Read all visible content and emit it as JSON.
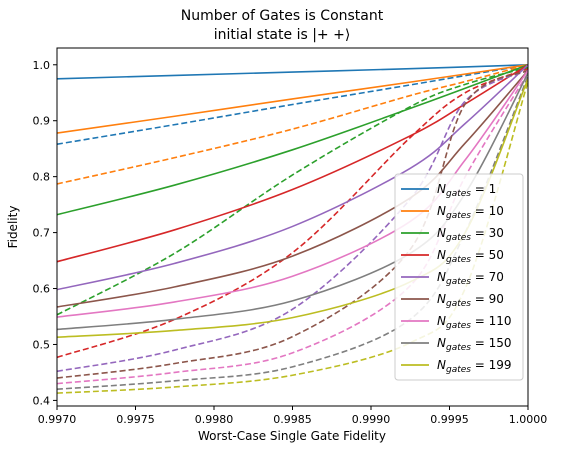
{
  "chart_data": {
    "type": "line",
    "title": "Number of Gates is Constant",
    "subtitle": "initial state is |+ +⟩",
    "xlabel": "Worst-Case Single Gate Fidelity",
    "ylabel": "Fidelity",
    "xlim": [
      0.997,
      1.0
    ],
    "ylim": [
      0.39,
      1.03
    ],
    "xticks": [
      0.997,
      0.9975,
      0.998,
      0.9985,
      0.999,
      0.9995,
      1.0
    ],
    "xtick_labels": [
      "0.9970",
      "0.9975",
      "0.9980",
      "0.9985",
      "0.9990",
      "0.9995",
      "1.0000"
    ],
    "yticks": [
      0.4,
      0.5,
      0.6,
      0.7,
      0.8,
      0.9,
      1.0
    ],
    "ytick_labels": [
      "0.4",
      "0.5",
      "0.6",
      "0.7",
      "0.8",
      "0.9",
      "1.0"
    ],
    "grid": false,
    "legend_position": "lower-right",
    "line_styles": {
      "solid": "solid",
      "dashed": "dashed"
    },
    "legend": [
      {
        "sym": "N",
        "sub": "gates",
        "rest": " = 1",
        "color": "#1f77b4"
      },
      {
        "sym": "N",
        "sub": "gates",
        "rest": " = 10",
        "color": "#ff7f0e"
      },
      {
        "sym": "N",
        "sub": "gates",
        "rest": " = 30",
        "color": "#2ca02c"
      },
      {
        "sym": "N",
        "sub": "gates",
        "rest": " = 50",
        "color": "#d62728"
      },
      {
        "sym": "N",
        "sub": "gates",
        "rest": " = 70",
        "color": "#9467bd"
      },
      {
        "sym": "N",
        "sub": "gates",
        "rest": " = 90",
        "color": "#8c564b"
      },
      {
        "sym": "N",
        "sub": "gates",
        "rest": " = 110",
        "color": "#e377c2"
      },
      {
        "sym": "N",
        "sub": "gates",
        "rest": " = 150",
        "color": "#7f7f7f"
      },
      {
        "sym": "N",
        "sub": "gates",
        "rest": " = 199",
        "color": "#bcbd22"
      }
    ],
    "series": [
      {
        "color": "#1f77b4",
        "style": "solid",
        "x": [
          0.997,
          0.99775,
          0.9985,
          0.99925,
          1.0
        ],
        "y": [
          0.975,
          0.981,
          0.987,
          0.993,
          1.0
        ]
      },
      {
        "color": "#1f77b4",
        "style": "dashed",
        "x": [
          0.997,
          0.99775,
          0.9985,
          0.99925,
          1.0
        ],
        "y": [
          0.858,
          0.893,
          0.929,
          0.964,
          1.0
        ]
      },
      {
        "color": "#ff7f0e",
        "style": "solid",
        "x": [
          0.997,
          0.99775,
          0.9985,
          0.99925,
          1.0
        ],
        "y": [
          0.878,
          0.908,
          0.939,
          0.969,
          1.0
        ]
      },
      {
        "color": "#ff7f0e",
        "style": "dashed",
        "x": [
          0.997,
          0.99775,
          0.9985,
          0.99925,
          0.9996,
          1.0
        ],
        "y": [
          0.787,
          0.834,
          0.885,
          0.945,
          0.97,
          1.0
        ]
      },
      {
        "color": "#2ca02c",
        "style": "solid",
        "x": [
          0.997,
          0.99775,
          0.9985,
          0.99925,
          0.9996,
          1.0
        ],
        "y": [
          0.732,
          0.785,
          0.848,
          0.922,
          0.958,
          1.0
        ]
      },
      {
        "color": "#2ca02c",
        "style": "dashed",
        "x": [
          0.997,
          0.99775,
          0.9985,
          0.99925,
          0.9996,
          1.0
        ],
        "y": [
          0.553,
          0.663,
          0.803,
          0.925,
          0.965,
          0.995
        ]
      },
      {
        "color": "#d62728",
        "style": "solid",
        "x": [
          0.997,
          0.99775,
          0.9985,
          0.99925,
          0.9996,
          1.0
        ],
        "y": [
          0.648,
          0.705,
          0.777,
          0.873,
          0.93,
          1.0
        ]
      },
      {
        "color": "#d62728",
        "style": "dashed",
        "x": [
          0.997,
          0.99775,
          0.9985,
          0.99925,
          0.9996,
          1.0
        ],
        "y": [
          0.477,
          0.545,
          0.664,
          0.87,
          0.95,
          0.993
        ]
      },
      {
        "color": "#9467bd",
        "style": "solid",
        "x": [
          0.997,
          0.99775,
          0.9985,
          0.99925,
          0.9996,
          1.0
        ],
        "y": [
          0.598,
          0.645,
          0.711,
          0.815,
          0.895,
          1.0
        ]
      },
      {
        "color": "#9467bd",
        "style": "dashed",
        "x": [
          0.997,
          0.99775,
          0.9985,
          0.99925,
          0.9996,
          1.0
        ],
        "y": [
          0.452,
          0.49,
          0.563,
          0.76,
          0.935,
          0.99
        ]
      },
      {
        "color": "#8c564b",
        "style": "solid",
        "x": [
          0.997,
          0.99775,
          0.9985,
          0.99925,
          0.9996,
          1.0
        ],
        "y": [
          0.567,
          0.603,
          0.658,
          0.762,
          0.86,
          0.99
        ]
      },
      {
        "color": "#8c564b",
        "style": "dashed",
        "x": [
          0.997,
          0.99775,
          0.9985,
          0.99925,
          0.9996,
          1.0
        ],
        "y": [
          0.44,
          0.466,
          0.514,
          0.67,
          0.93,
          0.99
        ]
      },
      {
        "color": "#e377c2",
        "style": "solid",
        "x": [
          0.997,
          0.99775,
          0.9985,
          0.99925,
          0.9996,
          1.0
        ],
        "y": [
          0.549,
          0.576,
          0.622,
          0.72,
          0.83,
          0.99
        ]
      },
      {
        "color": "#e377c2",
        "style": "dashed",
        "x": [
          0.997,
          0.99775,
          0.9985,
          0.99925,
          0.9996,
          1.0
        ],
        "y": [
          0.43,
          0.45,
          0.485,
          0.605,
          0.8,
          0.985
        ]
      },
      {
        "color": "#7f7f7f",
        "style": "solid",
        "x": [
          0.997,
          0.99775,
          0.9985,
          0.99925,
          0.9996,
          1.0
        ],
        "y": [
          0.527,
          0.545,
          0.578,
          0.663,
          0.77,
          0.985
        ]
      },
      {
        "color": "#7f7f7f",
        "style": "dashed",
        "x": [
          0.997,
          0.99775,
          0.9985,
          0.99925,
          0.9996,
          1.0
        ],
        "y": [
          0.42,
          0.435,
          0.46,
          0.545,
          0.7,
          0.98
        ]
      },
      {
        "color": "#bcbd22",
        "style": "solid",
        "x": [
          0.997,
          0.99775,
          0.9985,
          0.99925,
          0.9996,
          1.0
        ],
        "y": [
          0.513,
          0.525,
          0.548,
          0.612,
          0.7,
          0.975
        ]
      },
      {
        "color": "#bcbd22",
        "style": "dashed",
        "x": [
          0.997,
          0.99775,
          0.9985,
          0.99925,
          0.9996,
          1.0
        ],
        "y": [
          0.413,
          0.424,
          0.445,
          0.503,
          0.6,
          0.97
        ]
      }
    ]
  }
}
